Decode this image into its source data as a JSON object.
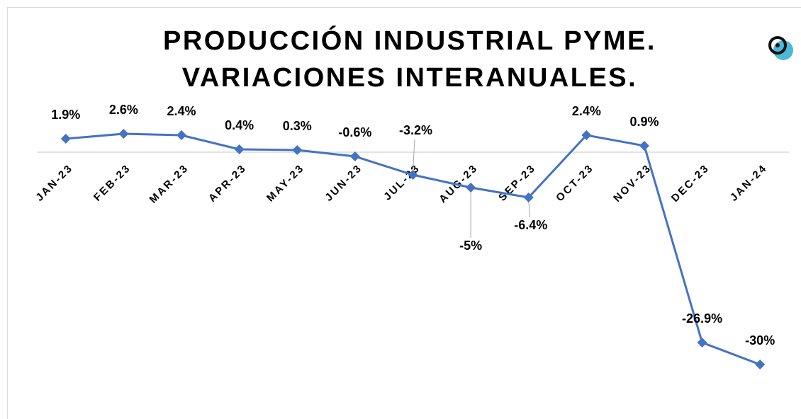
{
  "chart_data": {
    "type": "line",
    "title": [
      "PRODUCCIÓN INDUSTRIAL PYME.",
      "VARIACIONES INTERANUALES."
    ],
    "categories": [
      "JAN-23",
      "FEB-23",
      "MAR-23",
      "APR-23",
      "MAY-23",
      "JUN-23",
      "JUL-23",
      "AUG-23",
      "SEP-23",
      "OCT-23",
      "NOV-23",
      "DEC-23",
      "JAN-24"
    ],
    "values": [
      1.9,
      2.6,
      2.4,
      0.4,
      0.3,
      -0.6,
      -3.2,
      -5,
      -6.4,
      2.4,
      0.9,
      -26.9,
      -30
    ],
    "value_labels": [
      "1.9%",
      "2.6%",
      "2.4%",
      "0.4%",
      "0.3%",
      "-0.6%",
      "-3.2%",
      "-5%",
      "-6.4%",
      "2.4%",
      "0.9%",
      "-26.9%",
      "-30%"
    ],
    "color": "#4472c4",
    "ylim": [
      -35,
      5
    ]
  }
}
